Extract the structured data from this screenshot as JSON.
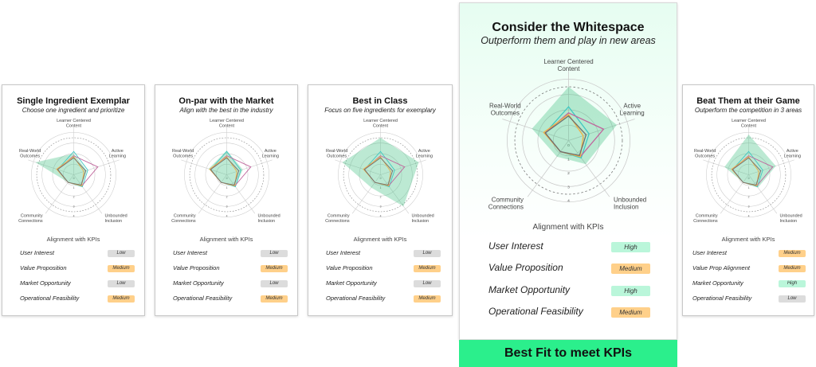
{
  "level_colors": {
    "Low": "#dcdcdc",
    "Medium": "#ffd08a",
    "High": "#baf6da"
  },
  "series_colors": {
    "target_fill": "#3fbf82",
    "teal": "#3ec8c2",
    "pink": "#c0649c",
    "yellow": "#f2b445",
    "gray": "#6e6e6e"
  },
  "cards": [
    {
      "title": "Single Ingredient Exemplar",
      "subtitle": "Choose one ingredient and prioritize",
      "kpi_header": "Alignment with KPIs",
      "kpis": [
        {
          "label": "User Interest",
          "level": "Low"
        },
        {
          "label": "Value Proposition",
          "level": "Medium"
        },
        {
          "label": "Market Opportunity",
          "level": "Low"
        },
        {
          "label": "Operational Feasibility",
          "level": "Medium"
        }
      ]
    },
    {
      "title": "On-par with the Market",
      "subtitle": "Align with the best in the industry",
      "kpi_header": "Alignment with KPIs",
      "kpis": [
        {
          "label": "User Interest",
          "level": "Low"
        },
        {
          "label": "Value Proposition",
          "level": "Medium"
        },
        {
          "label": "Market Opportunity",
          "level": "Low"
        },
        {
          "label": "Operational Feasibility",
          "level": "Medium"
        }
      ]
    },
    {
      "title": "Best in Class",
      "subtitle": "Focus on five ingredients for exemplary",
      "kpi_header": "Alignment with KPIs",
      "kpis": [
        {
          "label": "User Interest",
          "level": "Low"
        },
        {
          "label": "Value Proposition",
          "level": "Medium"
        },
        {
          "label": "Market Opportunity",
          "level": "Low"
        },
        {
          "label": "Operational Feasibility",
          "level": "Medium"
        }
      ]
    },
    {
      "title": "Consider the Whitespace",
      "subtitle": "Outperform them and play in new areas",
      "kpi_header": "Alignment with KPIs",
      "kpis": [
        {
          "label": "User Interest",
          "level": "High"
        },
        {
          "label": "Value Proposition",
          "level": "Medium"
        },
        {
          "label": "Market Opportunity",
          "level": "High"
        },
        {
          "label": "Operational Feasibility",
          "level": "Medium"
        }
      ]
    },
    {
      "title": "Beat Them at their Game",
      "subtitle": "Outperform the competition in 3 areas",
      "kpi_header": "Alignment with KPIs",
      "kpis": [
        {
          "label": "User Interest",
          "level": "Medium"
        },
        {
          "label": "Value Prop Alignment",
          "level": "Medium"
        },
        {
          "label": "Market Opportunity",
          "level": "High"
        },
        {
          "label": "Operational Feasibility",
          "level": "Low"
        }
      ]
    }
  ],
  "best_fit_label": "Best Fit to meet KPIs",
  "chart_data": [
    {
      "type": "radar",
      "axes": [
        "Learner Centered Content",
        "Active Learning",
        "Unbounded Inclusion",
        "Community Connections",
        "Real-World Outcomes"
      ],
      "ticks": [
        "0",
        "1",
        "2",
        "3",
        "4"
      ],
      "range": [
        0,
        4
      ],
      "series": [
        {
          "values": [
            2.0,
            1.3,
            1.3,
            0.9,
            3.8
          ],
          "style": "fill"
        },
        {
          "values": [
            2.2,
            1.4,
            1.4,
            0.9,
            1.6
          ],
          "color": "teal"
        },
        {
          "values": [
            1.8,
            2.4,
            1.3,
            0.9,
            1.6
          ],
          "color": "pink"
        },
        {
          "values": [
            1.7,
            1.0,
            1.3,
            0.9,
            1.7
          ],
          "color": "yellow"
        },
        {
          "values": [
            1.6,
            1.2,
            1.2,
            0.9,
            1.6
          ],
          "color": "gray"
        }
      ]
    },
    {
      "type": "radar",
      "axes": [
        "Learner Centered Content",
        "Active Learning",
        "Unbounded Inclusion",
        "Community Connections",
        "Real-World Outcomes"
      ],
      "ticks": [
        "0",
        "1",
        "2",
        "3",
        "4"
      ],
      "range": [
        0,
        4
      ],
      "series": [
        {
          "values": [
            2.3,
            1.6,
            1.4,
            0.9,
            1.8
          ],
          "style": "fill"
        },
        {
          "values": [
            2.2,
            1.4,
            1.4,
            0.9,
            1.6
          ],
          "color": "teal"
        },
        {
          "values": [
            1.8,
            2.4,
            1.3,
            0.9,
            1.6
          ],
          "color": "pink"
        },
        {
          "values": [
            1.7,
            1.0,
            1.3,
            0.9,
            1.7
          ],
          "color": "yellow"
        },
        {
          "values": [
            1.6,
            1.2,
            1.2,
            0.9,
            1.6
          ],
          "color": "gray"
        }
      ]
    },
    {
      "type": "radar",
      "axes": [
        "Learner Centered Content",
        "Active Learning",
        "Unbounded Inclusion",
        "Community Connections",
        "Real-World Outcomes"
      ],
      "ticks": [
        "0",
        "1",
        "2",
        "3",
        "4"
      ],
      "range": [
        0,
        4
      ],
      "series": [
        {
          "values": [
            3.5,
            3.8,
            3.7,
            1.5,
            3.8
          ],
          "style": "fill"
        },
        {
          "values": [
            2.2,
            1.4,
            1.4,
            0.9,
            1.6
          ],
          "color": "teal"
        },
        {
          "values": [
            1.8,
            2.4,
            1.3,
            0.9,
            1.6
          ],
          "color": "pink"
        },
        {
          "values": [
            1.7,
            1.0,
            1.3,
            0.9,
            1.7
          ],
          "color": "yellow"
        },
        {
          "values": [
            1.6,
            1.2,
            1.2,
            0.9,
            1.6
          ],
          "color": "gray"
        }
      ]
    },
    {
      "type": "radar",
      "axes": [
        "Learner Centered Content",
        "Active Learning",
        "Unbounded Inclusion",
        "Community Connections",
        "Real-World Outcomes"
      ],
      "ticks": [
        "0",
        "1",
        "2",
        "3",
        "4"
      ],
      "range": [
        0,
        4
      ],
      "series": [
        {
          "values": [
            3.5,
            3.3,
            1.9,
            1.3,
            2.5
          ],
          "style": "fill"
        },
        {
          "values": [
            2.2,
            1.4,
            1.4,
            0.9,
            1.6
          ],
          "color": "teal"
        },
        {
          "values": [
            1.8,
            2.4,
            1.3,
            0.9,
            1.6
          ],
          "color": "pink"
        },
        {
          "values": [
            1.7,
            1.0,
            1.3,
            0.9,
            1.7
          ],
          "color": "yellow"
        },
        {
          "values": [
            1.6,
            1.2,
            1.2,
            0.9,
            1.6
          ],
          "color": "gray"
        }
      ]
    },
    {
      "type": "radar",
      "axes": [
        "Learner Centered Content",
        "Active Learning",
        "Unbounded Inclusion",
        "Community Connections",
        "Real-World Outcomes"
      ],
      "ticks": [
        "0",
        "1",
        "2",
        "3",
        "4"
      ],
      "range": [
        0,
        4
      ],
      "series": [
        {
          "values": [
            3.8,
            2.7,
            1.5,
            0.9,
            2.4
          ],
          "style": "fill"
        },
        {
          "values": [
            2.2,
            1.4,
            1.4,
            0.9,
            1.6
          ],
          "color": "teal"
        },
        {
          "values": [
            1.8,
            2.4,
            1.3,
            0.9,
            1.6
          ],
          "color": "pink"
        },
        {
          "values": [
            1.7,
            1.0,
            1.3,
            0.9,
            1.7
          ],
          "color": "yellow"
        },
        {
          "values": [
            1.6,
            1.2,
            1.2,
            0.9,
            1.6
          ],
          "color": "gray"
        }
      ]
    }
  ]
}
